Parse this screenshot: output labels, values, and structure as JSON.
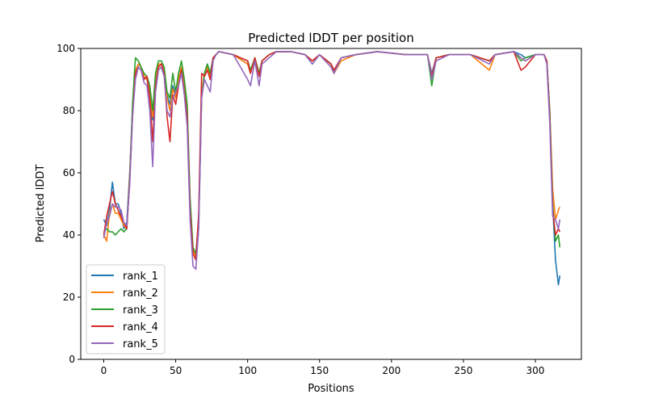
{
  "chart_data": {
    "type": "line",
    "title": "Predicted lDDT per position",
    "xlabel": "Positions",
    "ylabel": "Predicted lDDT",
    "xlim": [
      -16,
      332
    ],
    "ylim": [
      0,
      100
    ],
    "xticks": [
      0,
      50,
      100,
      150,
      200,
      250,
      300
    ],
    "yticks": [
      0,
      20,
      40,
      60,
      80,
      100
    ],
    "grid": false,
    "legend_placement": "lower-left",
    "x": [
      0,
      2,
      4,
      6,
      8,
      10,
      12,
      14,
      16,
      18,
      20,
      22,
      24,
      26,
      28,
      30,
      32,
      34,
      36,
      38,
      40,
      42,
      44,
      46,
      48,
      50,
      52,
      54,
      56,
      58,
      60,
      62,
      64,
      66,
      68,
      70,
      72,
      74,
      76,
      78,
      80,
      90,
      100,
      102,
      105,
      108,
      110,
      115,
      120,
      130,
      140,
      145,
      150,
      158,
      160,
      165,
      175,
      190,
      210,
      225,
      228,
      231,
      240,
      255,
      268,
      272,
      285,
      290,
      293,
      300,
      306,
      308,
      310,
      312,
      314,
      316,
      317
    ],
    "series": [
      {
        "name": "rank_1",
        "color": "#1f77b4",
        "values": [
          45,
          43,
          48,
          57,
          50,
          50,
          47,
          42,
          44,
          60,
          80,
          92,
          95,
          94,
          91,
          90,
          85,
          77,
          90,
          95,
          95,
          93,
          85,
          82,
          88,
          85,
          90,
          94,
          88,
          80,
          50,
          35,
          33,
          45,
          85,
          92,
          95,
          92,
          97,
          98,
          99,
          98,
          95,
          92,
          97,
          92,
          96,
          98,
          99,
          99,
          98,
          96,
          98,
          95,
          93,
          97,
          98,
          99,
          98,
          98,
          92,
          97,
          98,
          98,
          96,
          98,
          99,
          98,
          97,
          98,
          98,
          96,
          80,
          50,
          32,
          24,
          27
        ]
      },
      {
        "name": "rank_2",
        "color": "#ff7f0e",
        "values": [
          40,
          38,
          47,
          50,
          47,
          47,
          45,
          43,
          42,
          59,
          80,
          93,
          95,
          94,
          91,
          90,
          86,
          78,
          90,
          95,
          95,
          93,
          84,
          80,
          87,
          84,
          90,
          94,
          88,
          80,
          50,
          35,
          33,
          46,
          86,
          92,
          94,
          91,
          97,
          98,
          99,
          98,
          95,
          92,
          97,
          92,
          96,
          98,
          99,
          99,
          98,
          96,
          98,
          94,
          92,
          96,
          98,
          99,
          98,
          98,
          91,
          97,
          98,
          98,
          93,
          98,
          99,
          97,
          96,
          98,
          98,
          96,
          80,
          55,
          45,
          48,
          49
        ]
      },
      {
        "name": "rank_3",
        "color": "#2ca02c",
        "values": [
          41,
          42,
          41,
          41,
          40,
          41,
          42,
          41,
          42,
          58,
          82,
          97,
          96,
          94,
          92,
          91,
          88,
          80,
          92,
          96,
          96,
          94,
          86,
          84,
          92,
          86,
          92,
          96,
          90,
          82,
          52,
          36,
          34,
          44,
          84,
          92,
          95,
          92,
          97,
          98,
          99,
          98,
          96,
          93,
          97,
          92,
          96,
          98,
          99,
          99,
          98,
          95,
          98,
          95,
          92,
          97,
          98,
          99,
          98,
          98,
          88,
          97,
          98,
          98,
          96,
          98,
          99,
          96,
          97,
          98,
          98,
          96,
          80,
          50,
          38,
          40,
          36
        ]
      },
      {
        "name": "rank_4",
        "color": "#d62728",
        "values": [
          40,
          46,
          50,
          54,
          50,
          48,
          46,
          44,
          42,
          57,
          78,
          92,
          94,
          93,
          90,
          91,
          84,
          70,
          88,
          94,
          95,
          92,
          78,
          70,
          85,
          82,
          88,
          93,
          86,
          78,
          48,
          34,
          32,
          47,
          92,
          91,
          93,
          90,
          97,
          98,
          99,
          98,
          96,
          92,
          97,
          91,
          96,
          98,
          99,
          99,
          98,
          96,
          98,
          95,
          93,
          97,
          98,
          99,
          98,
          98,
          91,
          97,
          98,
          98,
          96,
          98,
          99,
          93,
          94,
          98,
          98,
          96,
          78,
          48,
          40,
          42,
          41
        ]
      },
      {
        "name": "rank_5",
        "color": "#9467bd",
        "values": [
          39,
          44,
          46,
          50,
          49,
          49,
          48,
          44,
          43,
          56,
          78,
          90,
          94,
          93,
          89,
          88,
          80,
          62,
          86,
          93,
          94,
          91,
          80,
          78,
          84,
          86,
          88,
          92,
          85,
          75,
          45,
          30,
          29,
          42,
          84,
          90,
          88,
          86,
          96,
          98,
          99,
          98,
          90,
          88,
          96,
          88,
          95,
          97,
          99,
          99,
          98,
          95,
          98,
          94,
          92,
          97,
          98,
          99,
          98,
          98,
          90,
          96,
          98,
          98,
          95,
          98,
          99,
          97,
          96,
          98,
          98,
          95,
          76,
          46,
          45,
          42,
          45
        ]
      }
    ]
  }
}
